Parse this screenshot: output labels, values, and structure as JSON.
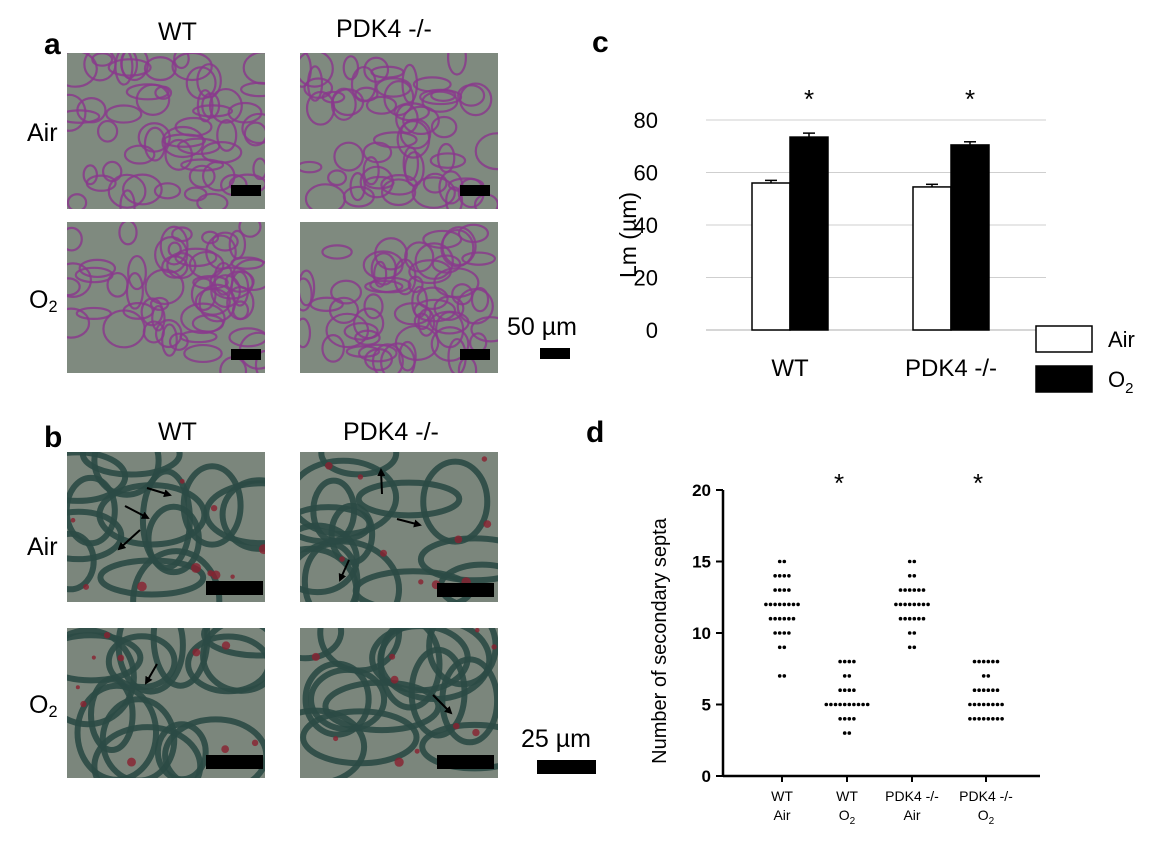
{
  "panel_a": {
    "letter": "a",
    "col_labels": [
      "WT",
      "PDK4 -/-"
    ],
    "row_labels": [
      {
        "main": "Air",
        "sub": ""
      },
      {
        "main": "O",
        "sub": "2"
      }
    ],
    "scale_label": "50 µm"
  },
  "panel_b": {
    "letter": "b",
    "col_labels": [
      "WT",
      "PDK4 -/-"
    ],
    "row_labels": [
      {
        "main": "Air",
        "sub": ""
      },
      {
        "main": "O",
        "sub": "2"
      }
    ],
    "scale_label": "25 µm"
  },
  "colors": {
    "he_stain": "#8a3a8c",
    "he_background": "#7f8a7f",
    "mt_stain": "#2b4a45",
    "mt_red": "#8a2030",
    "mt_background": "#7b867c"
  },
  "chart_data": [
    {
      "panel": "c",
      "type": "bar",
      "title": "",
      "xlabel": "",
      "ylabel": "Lm (µm)",
      "ylim": [
        0,
        80
      ],
      "yticks": [
        0,
        20,
        40,
        60,
        80
      ],
      "grid": true,
      "categories": [
        "WT",
        "PDK4 -/-"
      ],
      "series": [
        {
          "name": "Air",
          "values": [
            56,
            54.5
          ],
          "errors": [
            1,
            1
          ],
          "color": "#ffffff"
        },
        {
          "name": "O",
          "name_sub": "2",
          "values": [
            73.5,
            70.5
          ],
          "errors": [
            1.5,
            1.2
          ],
          "color": "#000000"
        }
      ],
      "annotations": [
        "*",
        "*"
      ],
      "legend_position": "bottom-right"
    },
    {
      "panel": "d",
      "type": "scatter",
      "title": "",
      "xlabel": "",
      "ylabel": "Number of secondary septa",
      "ylim": [
        0,
        20
      ],
      "yticks": [
        0,
        5,
        10,
        15,
        20
      ],
      "grid": false,
      "groups": [
        {
          "label_line1": "WT",
          "label_line2": "Air",
          "label_line2_sub": "",
          "counts": {
            "7": 2,
            "9": 2,
            "10": 4,
            "11": 6,
            "12": 8,
            "13": 4,
            "14": 4,
            "15": 2
          }
        },
        {
          "label_line1": "WT",
          "label_line2": "O",
          "label_line2_sub": "2",
          "counts": {
            "3": 2,
            "4": 4,
            "5": 10,
            "6": 4,
            "7": 2,
            "8": 4
          }
        },
        {
          "label_line1": "PDK4 -/-",
          "label_line2": "Air",
          "label_line2_sub": "",
          "counts": {
            "9": 2,
            "10": 2,
            "11": 6,
            "12": 8,
            "13": 6,
            "14": 2,
            "15": 2
          }
        },
        {
          "label_line1": "PDK4 -/-",
          "label_line2": "O",
          "label_line2_sub": "2",
          "counts": {
            "4": 8,
            "5": 8,
            "6": 6,
            "7": 2,
            "8": 6
          }
        }
      ],
      "annotations": [
        "*",
        "*"
      ]
    }
  ]
}
